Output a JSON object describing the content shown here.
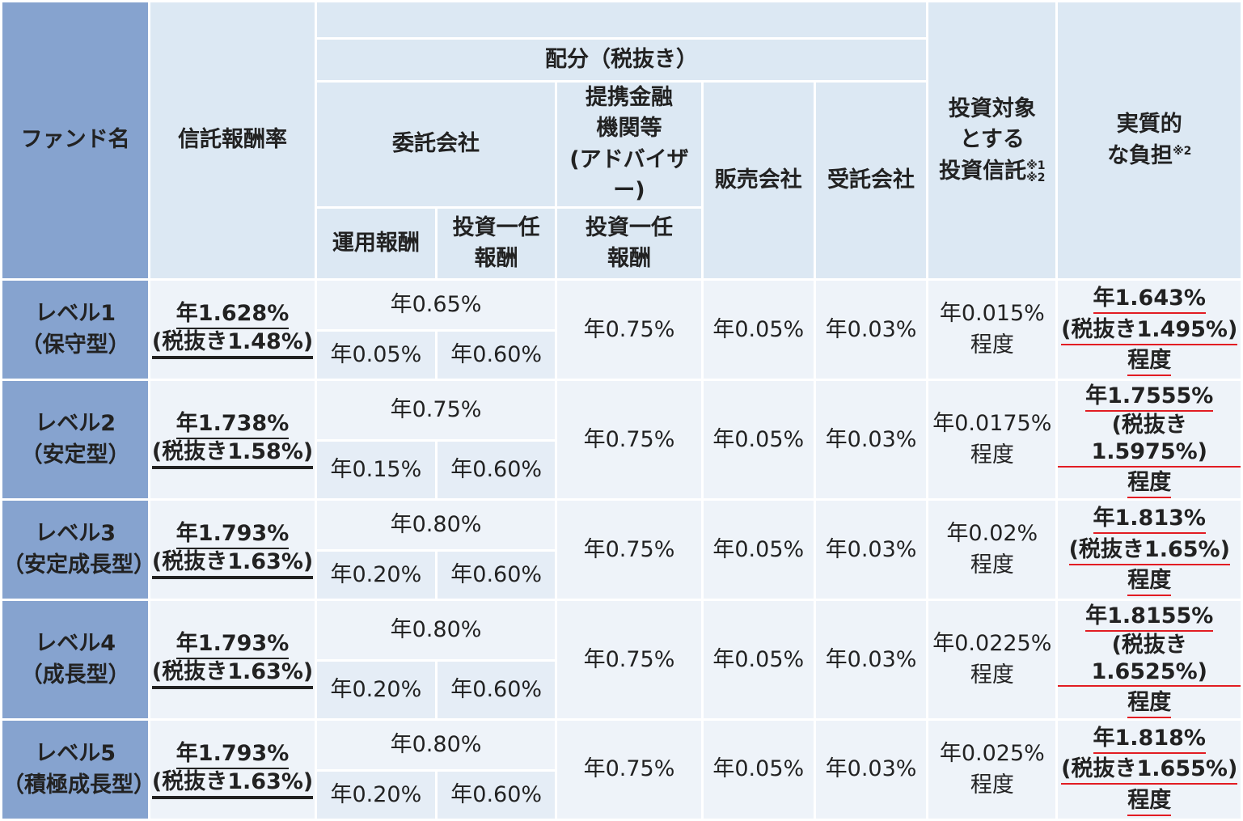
{
  "headers": {
    "fund_name": "ファンド名",
    "trust_fee_rate": "信託報酬率",
    "allocation": "配分（税抜き）",
    "consignor": "委託会社",
    "partner_line1": "提携金融",
    "partner_line2": "機関等",
    "partner_line3": "(アドバイザー)",
    "distributor": "販売会社",
    "trustee": "受託会社",
    "invest_line1": "投資対象",
    "invest_line2": "とする",
    "invest_line3": "投資信託",
    "invest_note1": "※1",
    "invest_note2": "※2",
    "burden_line1": "実質的",
    "burden_line2": "な負担",
    "burden_note": "※2",
    "management_fee": "運用報酬",
    "discretionary_line1": "投資一任",
    "discretionary_line2": "報酬",
    "partner_disc_line1": "投資一任",
    "partner_disc_line2": "報酬"
  },
  "rows": [
    {
      "name1": "レベル1",
      "name2": "（保守型）",
      "rate1": "年1.628%",
      "rate2": "(税抜き1.48%)",
      "consignor_total": "年0.65%",
      "management": "年0.05%",
      "discretionary": "年0.60%",
      "partner": "年0.75%",
      "distributor": "年0.05%",
      "trustee": "年0.03%",
      "invest1": "年0.015%",
      "invest2": "程度",
      "burden1": "年1.643%",
      "burden2": "(税抜き1.495%)",
      "burden3": "程度"
    },
    {
      "name1": "レベル2",
      "name2": "（安定型）",
      "rate1": "年1.738%",
      "rate2": "(税抜き1.58%)",
      "consignor_total": "年0.75%",
      "management": "年0.15%",
      "discretionary": "年0.60%",
      "partner": "年0.75%",
      "distributor": "年0.05%",
      "trustee": "年0.03%",
      "invest1": "年0.0175%",
      "invest2": "程度",
      "burden1": "年1.7555%",
      "burden2": "(税抜き1.5975%)",
      "burden3": "程度"
    },
    {
      "name1": "レベル3",
      "name2": "（安定成長型）",
      "rate1": "年1.793%",
      "rate2": "(税抜き1.63%)",
      "consignor_total": "年0.80%",
      "management": "年0.20%",
      "discretionary": "年0.60%",
      "partner": "年0.75%",
      "distributor": "年0.05%",
      "trustee": "年0.03%",
      "invest1": "年0.02%",
      "invest2": "程度",
      "burden1": "年1.813%",
      "burden2": "(税抜き1.65%)",
      "burden3": "程度"
    },
    {
      "name1": "レベル4",
      "name2": "（成長型）",
      "rate1": "年1.793%",
      "rate2": "(税抜き1.63%)",
      "consignor_total": "年0.80%",
      "management": "年0.20%",
      "discretionary": "年0.60%",
      "partner": "年0.75%",
      "distributor": "年0.05%",
      "trustee": "年0.03%",
      "invest1": "年0.0225%",
      "invest2": "程度",
      "burden1": "年1.8155%",
      "burden2": "(税抜き1.6525%)",
      "burden3": "程度"
    },
    {
      "name1": "レベル5",
      "name2": "（積極成長型）",
      "rate1": "年1.793%",
      "rate2": "(税抜き1.63%)",
      "consignor_total": "年0.80%",
      "management": "年0.20%",
      "discretionary": "年0.60%",
      "partner": "年0.75%",
      "distributor": "年0.05%",
      "trustee": "年0.03%",
      "invest1": "年0.025%",
      "invest2": "程度",
      "burden1": "年1.818%",
      "burden2": "(税抜き1.655%)",
      "burden3": "程度"
    }
  ],
  "colors": {
    "fund_column": "#86a3cf",
    "header": "#dce8f3",
    "cell": "#eef3f9",
    "cell_alt": "#e5edf6",
    "burden_text": "#e21c23"
  }
}
